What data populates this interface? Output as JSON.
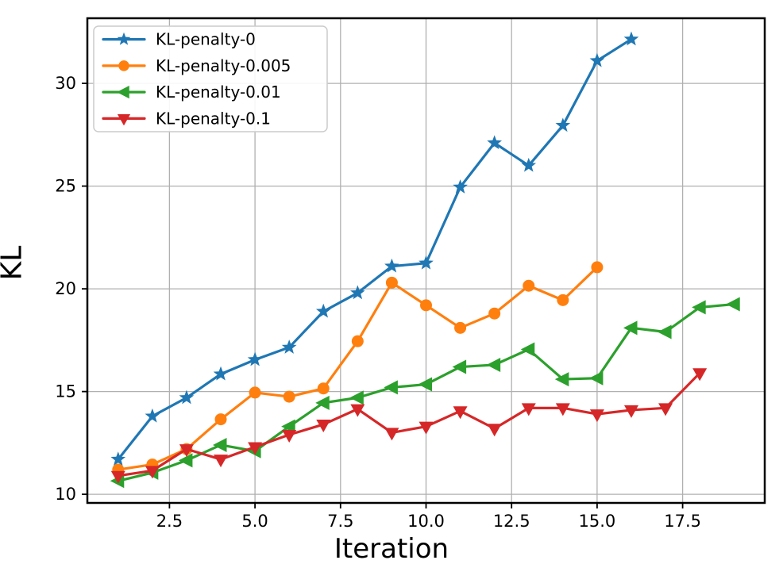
{
  "chart_data": {
    "type": "line",
    "title": "",
    "xlabel": "Iteration",
    "ylabel": "KL",
    "xlim": [
      0.1,
      19.9
    ],
    "ylim": [
      9.58,
      33.17
    ],
    "grid": true,
    "legend_position": "upper-left",
    "xticks": [
      2.5,
      5.0,
      7.5,
      10.0,
      12.5,
      15.0,
      17.5
    ],
    "xtick_labels": [
      "2.5",
      "5.0",
      "7.5",
      "10.0",
      "12.5",
      "15.0",
      "17.5"
    ],
    "yticks": [
      10,
      15,
      20,
      25,
      30
    ],
    "ytick_labels": [
      "10",
      "15",
      "20",
      "25",
      "30"
    ],
    "colors": {
      "grid": "#b0b0b0",
      "spine": "#000000",
      "legend_border": "#cccccc",
      "legend_bg": "#ffffff"
    },
    "series": [
      {
        "name": "KL-penalty-0",
        "color": "#1f77b4",
        "marker": "star",
        "x": [
          1,
          2,
          3,
          4,
          5,
          6,
          7,
          8,
          9,
          10,
          11,
          12,
          13,
          14,
          15,
          16
        ],
        "values": [
          11.7,
          13.8,
          14.7,
          15.85,
          16.55,
          17.15,
          18.9,
          19.8,
          21.1,
          21.25,
          24.95,
          27.1,
          26.0,
          27.95,
          31.1,
          32.15
        ]
      },
      {
        "name": "KL-penalty-0.005",
        "color": "#ff7f0e",
        "marker": "circle",
        "x": [
          1,
          2,
          3,
          4,
          5,
          6,
          7,
          8,
          9,
          10,
          11,
          12,
          13,
          14,
          15
        ],
        "values": [
          11.2,
          11.45,
          12.2,
          13.65,
          14.95,
          14.75,
          15.15,
          17.45,
          20.3,
          19.2,
          18.1,
          18.8,
          20.15,
          19.45,
          21.05
        ]
      },
      {
        "name": "KL-penalty-0.01",
        "color": "#2ca02c",
        "marker": "triangle-left",
        "x": [
          1,
          2,
          3,
          4,
          5,
          6,
          7,
          8,
          9,
          10,
          11,
          12,
          13,
          14,
          15,
          16,
          17,
          18,
          19
        ],
        "values": [
          10.65,
          11.05,
          11.65,
          12.4,
          12.1,
          13.3,
          14.45,
          14.7,
          15.2,
          15.35,
          16.2,
          16.3,
          17.05,
          15.6,
          15.65,
          18.1,
          17.9,
          19.1,
          19.25
        ]
      },
      {
        "name": "KL-penalty-0.1",
        "color": "#d62728",
        "marker": "triangle-down",
        "x": [
          1,
          2,
          3,
          4,
          5,
          6,
          7,
          8,
          9,
          10,
          11,
          12,
          13,
          14,
          15,
          16,
          17,
          18
        ],
        "values": [
          10.9,
          11.15,
          12.2,
          11.7,
          12.3,
          12.9,
          13.4,
          14.15,
          13.0,
          13.3,
          14.05,
          13.2,
          14.2,
          14.2,
          13.9,
          14.1,
          14.2,
          15.9
        ]
      }
    ]
  }
}
